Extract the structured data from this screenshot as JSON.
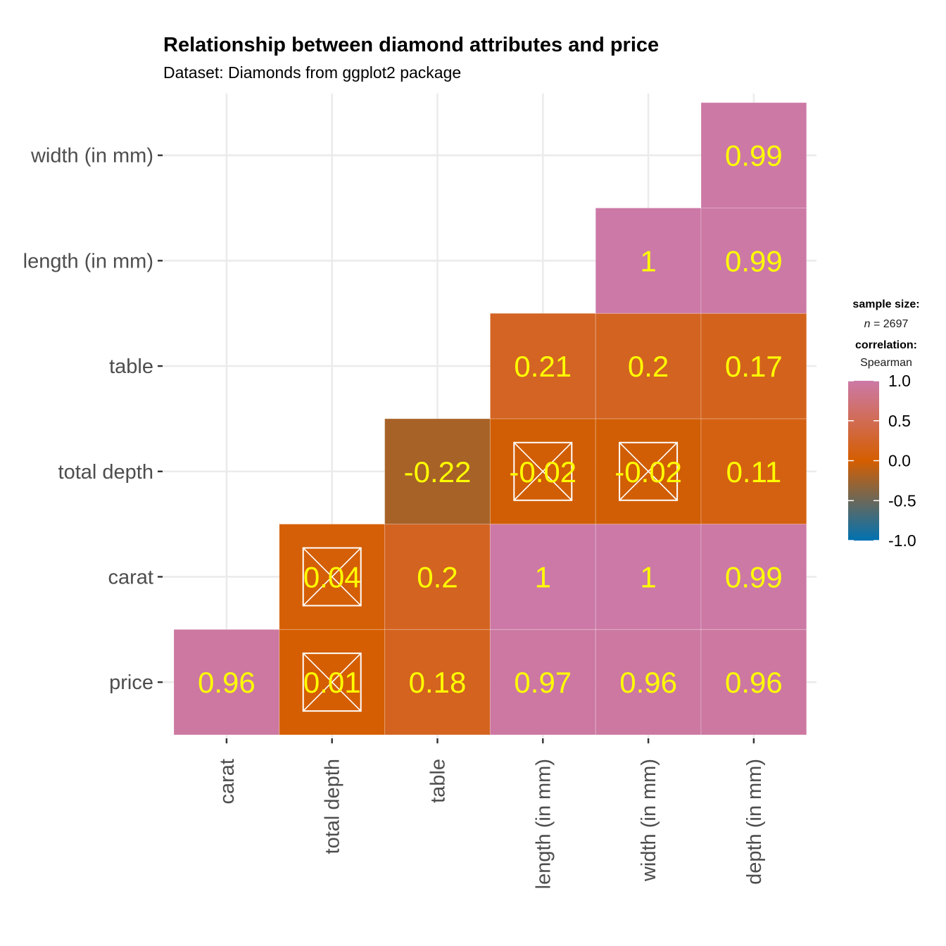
{
  "chart_data": {
    "type": "heatmap",
    "title": "Relationship between diamond attributes and price",
    "subtitle": "Dataset: Diamonds from ggplot2 package",
    "x_categories": [
      "carat",
      "total depth",
      "table",
      "length (in mm)",
      "width (in mm)",
      "depth (in mm)"
    ],
    "y_categories": [
      "price",
      "carat",
      "total depth",
      "table",
      "length (in mm)",
      "width (in mm)"
    ],
    "cells": [
      {
        "x": "carat",
        "y": "price",
        "value": 0.96,
        "label": "0.96",
        "crossed": false
      },
      {
        "x": "total depth",
        "y": "price",
        "value": 0.01,
        "label": "0.01",
        "crossed": true
      },
      {
        "x": "table",
        "y": "price",
        "value": 0.18,
        "label": "0.18",
        "crossed": false
      },
      {
        "x": "length (in mm)",
        "y": "price",
        "value": 0.97,
        "label": "0.97",
        "crossed": false
      },
      {
        "x": "width (in mm)",
        "y": "price",
        "value": 0.96,
        "label": "0.96",
        "crossed": false
      },
      {
        "x": "depth (in mm)",
        "y": "price",
        "value": 0.96,
        "label": "0.96",
        "crossed": false
      },
      {
        "x": "total depth",
        "y": "carat",
        "value": 0.04,
        "label": "0.04",
        "crossed": true
      },
      {
        "x": "table",
        "y": "carat",
        "value": 0.2,
        "label": "0.2",
        "crossed": false
      },
      {
        "x": "length (in mm)",
        "y": "carat",
        "value": 1,
        "label": "1",
        "crossed": false
      },
      {
        "x": "width (in mm)",
        "y": "carat",
        "value": 1,
        "label": "1",
        "crossed": false
      },
      {
        "x": "depth (in mm)",
        "y": "carat",
        "value": 0.99,
        "label": "0.99",
        "crossed": false
      },
      {
        "x": "table",
        "y": "total depth",
        "value": -0.22,
        "label": "-0.22",
        "crossed": false
      },
      {
        "x": "length (in mm)",
        "y": "total depth",
        "value": -0.02,
        "label": "-0.02",
        "crossed": true
      },
      {
        "x": "width (in mm)",
        "y": "total depth",
        "value": -0.02,
        "label": "-0.02",
        "crossed": true
      },
      {
        "x": "depth (in mm)",
        "y": "total depth",
        "value": 0.11,
        "label": "0.11",
        "crossed": false
      },
      {
        "x": "length (in mm)",
        "y": "table",
        "value": 0.21,
        "label": "0.21",
        "crossed": false
      },
      {
        "x": "width (in mm)",
        "y": "table",
        "value": 0.2,
        "label": "0.2",
        "crossed": false
      },
      {
        "x": "depth (in mm)",
        "y": "table",
        "value": 0.17,
        "label": "0.17",
        "crossed": false
      },
      {
        "x": "width (in mm)",
        "y": "length (in mm)",
        "value": 1,
        "label": "1",
        "crossed": false
      },
      {
        "x": "depth (in mm)",
        "y": "length (in mm)",
        "value": 0.99,
        "label": "0.99",
        "crossed": false
      },
      {
        "x": "depth (in mm)",
        "y": "width (in mm)",
        "value": 0.99,
        "label": "0.99",
        "crossed": false
      }
    ],
    "legend": {
      "sample_size_title": "sample size:",
      "sample_size_n": "n",
      "sample_size_eq": " = 2697",
      "correlation_title": "correlation:",
      "correlation_method": "Spearman",
      "ticks": [
        1.0,
        0.5,
        0.0,
        -0.5,
        -1.0
      ],
      "tick_labels": [
        "1.0",
        "0.5",
        "0.0",
        "-0.5",
        "-1.0"
      ],
      "range": [
        -1,
        1
      ],
      "placement": "right"
    },
    "colors": {
      "low": "#0072B2",
      "mid": "#D55E00",
      "high": "#CC79A7",
      "label": "#FFFF00",
      "cross": "#FFFFFF",
      "grid": "#EBEBEB"
    },
    "grid": true
  }
}
